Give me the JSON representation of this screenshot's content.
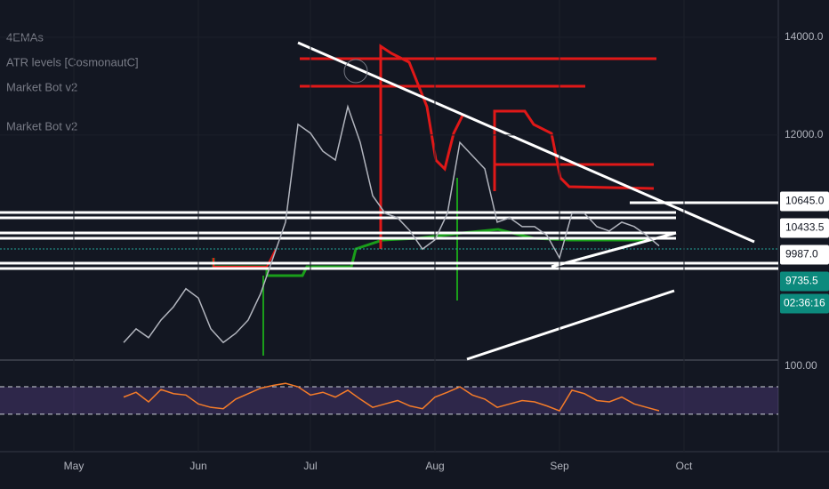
{
  "legend": [
    "4EMAs",
    "ATR levels [CosmonautC]",
    "Market Bot v2",
    "Market Bot v2"
  ],
  "chart_data": [
    {
      "type": "line",
      "categories": [
        "May",
        null,
        null,
        null,
        null,
        null,
        null,
        null,
        null,
        null,
        "Jun",
        null,
        null,
        null,
        null,
        null,
        null,
        null,
        null,
        "Jul",
        null,
        null,
        null,
        null,
        null,
        null,
        null,
        null,
        null,
        "Aug",
        null,
        null,
        null,
        null,
        null,
        null,
        null,
        null,
        null,
        "Sep",
        null,
        null,
        null,
        null,
        null,
        null,
        null,
        null,
        null,
        "Oct"
      ],
      "series": [
        {
          "color": "#b2b5be",
          "values": [
            null,
            null,
            null,
            null,
            7760,
            8040,
            7860,
            8220,
            8490,
            8860,
            8670,
            8040,
            7760,
            7950,
            8220,
            8760,
            9490,
            10220,
            12220,
            12040,
            11670,
            11490,
            12580,
            11850,
            10760,
            10400,
            10310,
            10040,
            9670,
            9860,
            10400,
            11850,
            11580,
            11310,
            10220,
            10310,
            10130,
            10130,
            9950,
            9490,
            10400,
            10400,
            10130,
            10040,
            10220,
            10130,
            9950,
            9735.5,
            null,
            null
          ]
        }
      ],
      "ylim": [
        7420,
        14760
      ],
      "yticks": [
        {
          "value": 12000,
          "label": "12000.0"
        },
        {
          "value": 14000,
          "label": "14000.0"
        }
      ],
      "grid": true,
      "price_tags": [
        {
          "value": 10645,
          "label": "10645.0",
          "color": "#ffffff"
        },
        {
          "value": 10433.5,
          "label": "10433.5",
          "color": "#ffffff"
        },
        {
          "value": 9987,
          "label": "9987.0",
          "color": "#ffffff"
        },
        {
          "value": 9735.5,
          "color": "#0c8a7d"
        }
      ],
      "countdown": "02:36:16"
    },
    {
      "type": "line",
      "series": [
        {
          "color": "#f57c29",
          "values": [
            null,
            null,
            null,
            null,
            55,
            62,
            48,
            66,
            60,
            58,
            45,
            40,
            38,
            52,
            60,
            68,
            72,
            75,
            70,
            58,
            62,
            55,
            65,
            52,
            40,
            45,
            50,
            42,
            38,
            55,
            62,
            70,
            58,
            52,
            40,
            45,
            50,
            48,
            42,
            35,
            65,
            60,
            50,
            48,
            55,
            45,
            40,
            35,
            null,
            null
          ]
        }
      ],
      "ylim": [
        0,
        109
      ],
      "yticks": [
        {
          "value": 100,
          "label": "100.00"
        }
      ],
      "bands": [
        30,
        70
      ],
      "band_color": "#7e57c2"
    }
  ]
}
